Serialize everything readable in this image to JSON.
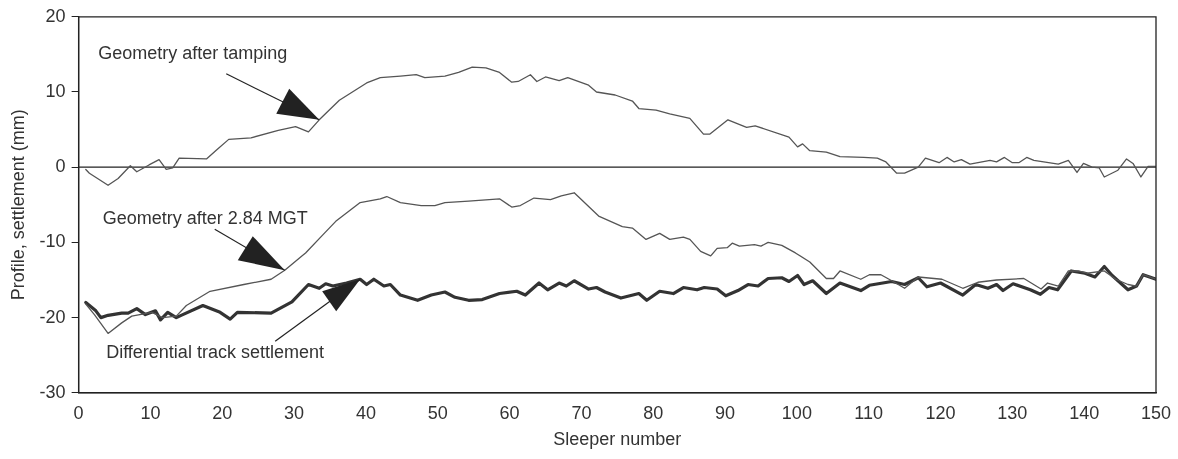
{
  "chart_data": {
    "type": "line",
    "xlabel": "Sleeper number",
    "ylabel": "Profile, settlement (mm)",
    "xlim": [
      0,
      150
    ],
    "xticks": [
      0,
      10,
      20,
      30,
      40,
      50,
      60,
      70,
      80,
      90,
      100,
      110,
      120,
      130,
      140,
      150
    ],
    "ylim": [
      -30,
      20
    ],
    "yticks": [
      -30,
      -20,
      -10,
      0,
      10,
      20
    ],
    "grid": false,
    "legend": false,
    "marker": "none",
    "line_style": "solid",
    "ref_lines": [
      {
        "axis": "y",
        "value": 0,
        "color": "#222222"
      }
    ],
    "annotations": [
      {
        "text": "Geometry after tamping",
        "x": 33.5,
        "y": 6.3
      },
      {
        "text": "Geometry after 2.84 MGT",
        "x": 28.7,
        "y": -13.7
      },
      {
        "text": "Differential track settlement",
        "x": 39.2,
        "y": -14.9
      }
    ],
    "series": [
      {
        "color": "#555555",
        "x": [
          1,
          1.5,
          4.1,
          5.5,
          7.2,
          8.1,
          9.8,
          11.2,
          12.2,
          13.1,
          14,
          17.8,
          19.2,
          20.9,
          24,
          27.8,
          30.2,
          32,
          33.5,
          36.3,
          40.1,
          42,
          44.8,
          47,
          48.2,
          51,
          52.9,
          54.8,
          56.7,
          58.6,
          60.3,
          61.2,
          62.9,
          63.8,
          65,
          66.9,
          68.1,
          71,
          72.1,
          74.7,
          77.1,
          78,
          80.4,
          82.3,
          85.1,
          87,
          87.9,
          90.4,
          93,
          94.2,
          98.9,
          100.1,
          100.8,
          101.8,
          104.1,
          106,
          109.3,
          111.2,
          112.4,
          113.9,
          115,
          116.9,
          117.9,
          119.8,
          120.9,
          121.9,
          122.9,
          124.1,
          126.9,
          127.8,
          128.9,
          130,
          130.9,
          132,
          133,
          136.4,
          137.8,
          139,
          139.9,
          141.1,
          142.1,
          142.8,
          144.7,
          145.9,
          146.8,
          147.9,
          148.9,
          150
        ],
        "values": [
          -0.3,
          -0.8,
          -2.4,
          -1.5,
          0.2,
          -0.6,
          0.3,
          1,
          -0.3,
          -0.1,
          1.2,
          1.1,
          2.3,
          3.7,
          3.9,
          4.9,
          5.4,
          4.7,
          6.3,
          8.9,
          11.2,
          11.9,
          12.1,
          12.3,
          11.9,
          12.1,
          12.6,
          13.3,
          13.2,
          12.6,
          11.3,
          11.4,
          12.3,
          11.4,
          12,
          11.5,
          11.9,
          10.9,
          10,
          9.6,
          8.8,
          7.8,
          7.6,
          7.1,
          6.5,
          4.4,
          4.4,
          6.3,
          5.3,
          5.5,
          4,
          2.7,
          3.1,
          2.2,
          2,
          1.4,
          1.3,
          1.2,
          0.7,
          -0.8,
          -0.8,
          0,
          1.2,
          0.6,
          1.3,
          0.7,
          1,
          0.4,
          0.9,
          0.7,
          1.3,
          0.6,
          0.6,
          1.3,
          0.9,
          0.4,
          0.9,
          -0.7,
          0.5,
          0,
          -0.1,
          -1.3,
          -0.4,
          1.1,
          0.5,
          -1.3,
          0.1,
          0.1
        ]
      },
      {
        "color": "#555555",
        "x": [
          1,
          2.2,
          4.1,
          6,
          7.4,
          10.2,
          11.7,
          13.6,
          15,
          18.3,
          23,
          26.8,
          28.7,
          31.6,
          33.9,
          35.8,
          39.2,
          42,
          42.9,
          44.8,
          47.7,
          49.6,
          51,
          54.3,
          58.6,
          60.3,
          61.5,
          63.4,
          65.7,
          67.2,
          69,
          72.4,
          75.7,
          77.1,
          79,
          80.9,
          82.3,
          84.2,
          85.1,
          86.6,
          88,
          88.9,
          90.3,
          91,
          92,
          94.1,
          95,
          96,
          97.9,
          99.8,
          101.8,
          104.1,
          105.1,
          106,
          108.9,
          110.1,
          111.7,
          113.4,
          115,
          116.9,
          120.2,
          123.1,
          125.2,
          127.8,
          131.6,
          134,
          134.9,
          136.4,
          137.8,
          139.2,
          140.4,
          142.8,
          144.4,
          146.1,
          147.3,
          148.2,
          150
        ],
        "values": [
          -18.2,
          -19.6,
          -22.1,
          -20.7,
          -19.8,
          -19.3,
          -20,
          -19.8,
          -18.4,
          -16.5,
          -15.6,
          -14.9,
          -13.7,
          -11.4,
          -9.1,
          -7.2,
          -4.7,
          -4.2,
          -3.9,
          -4.7,
          -5.1,
          -5.1,
          -4.7,
          -4.5,
          -4.2,
          -5.3,
          -5.1,
          -4.1,
          -4.3,
          -3.8,
          -3.4,
          -6.5,
          -7.9,
          -8.1,
          -9.6,
          -8.8,
          -9.6,
          -9.3,
          -9.6,
          -11.2,
          -11.8,
          -10.8,
          -10.7,
          -10.1,
          -10.5,
          -10.3,
          -10.5,
          -10,
          -10.4,
          -11.4,
          -12.6,
          -14.8,
          -14.8,
          -13.8,
          -14.9,
          -14.3,
          -14.3,
          -15.2,
          -16.1,
          -14.6,
          -14.9,
          -16.1,
          -15.3,
          -15,
          -14.8,
          -16.2,
          -15.4,
          -15.8,
          -13.8,
          -13.8,
          -14.1,
          -13.8,
          -14.9,
          -15.6,
          -15.8,
          -14.3,
          -14.9
        ]
      },
      {
        "color": "#333333",
        "x": [
          1,
          2.4,
          3.1,
          4.1,
          6,
          6.9,
          8.1,
          9.3,
          10.7,
          11.4,
          12.4,
          13.6,
          14.5,
          17.3,
          19.7,
          21.1,
          22.1,
          26.8,
          29.7,
          32,
          33.5,
          34.4,
          35.4,
          37.3,
          39.2,
          40.1,
          41.1,
          42.5,
          43.4,
          44.8,
          47.2,
          49.1,
          51,
          52.4,
          54.3,
          56.2,
          58.6,
          61,
          62.2,
          64.1,
          65.3,
          66.9,
          67.9,
          69,
          71,
          72.1,
          73.3,
          75.5,
          78,
          79.1,
          80.9,
          82.8,
          84.2,
          86.1,
          87.1,
          88.9,
          90.1,
          91.8,
          93.2,
          94.6,
          96,
          97.9,
          98.9,
          100.1,
          101,
          102.2,
          104.1,
          106,
          108.9,
          110.1,
          113.2,
          115,
          116.9,
          118.1,
          120,
          123.1,
          124.9,
          126.6,
          127.8,
          128.7,
          130.1,
          132.5,
          133.9,
          135.1,
          136.3,
          138.2,
          140.1,
          141.5,
          142.8,
          143.9,
          146.1,
          147.3,
          148.2,
          150
        ],
        "values": [
          -18,
          -19.1,
          -20,
          -19.7,
          -19.4,
          -19.4,
          -18.8,
          -19.6,
          -19.1,
          -20.3,
          -19.3,
          -20,
          -19.6,
          -18.4,
          -19.3,
          -20.2,
          -19.3,
          -19.4,
          -17.9,
          -15.6,
          -16.1,
          -15.5,
          -15.8,
          -15.4,
          -14.9,
          -15.6,
          -14.9,
          -15.8,
          -15.6,
          -17,
          -17.7,
          -17,
          -16.6,
          -17.3,
          -17.7,
          -17.6,
          -16.8,
          -16.5,
          -17,
          -15.4,
          -16.3,
          -15.4,
          -15.8,
          -15.1,
          -16.2,
          -16,
          -16.6,
          -17.4,
          -16.8,
          -17.7,
          -16.5,
          -16.8,
          -16,
          -16.3,
          -16,
          -16.2,
          -17.1,
          -16.4,
          -15.6,
          -15.8,
          -14.8,
          -14.7,
          -15.2,
          -14.4,
          -15.6,
          -15.1,
          -16.8,
          -15.4,
          -16.4,
          -15.7,
          -15.2,
          -15.6,
          -14.7,
          -15.9,
          -15.4,
          -17,
          -15.6,
          -16.1,
          -15.6,
          -16.4,
          -15.5,
          -16.3,
          -16.9,
          -16,
          -16.3,
          -13.8,
          -14.1,
          -14.6,
          -13.2,
          -14.4,
          -16.3,
          -15.8,
          -14.3,
          -14.9
        ]
      }
    ]
  }
}
